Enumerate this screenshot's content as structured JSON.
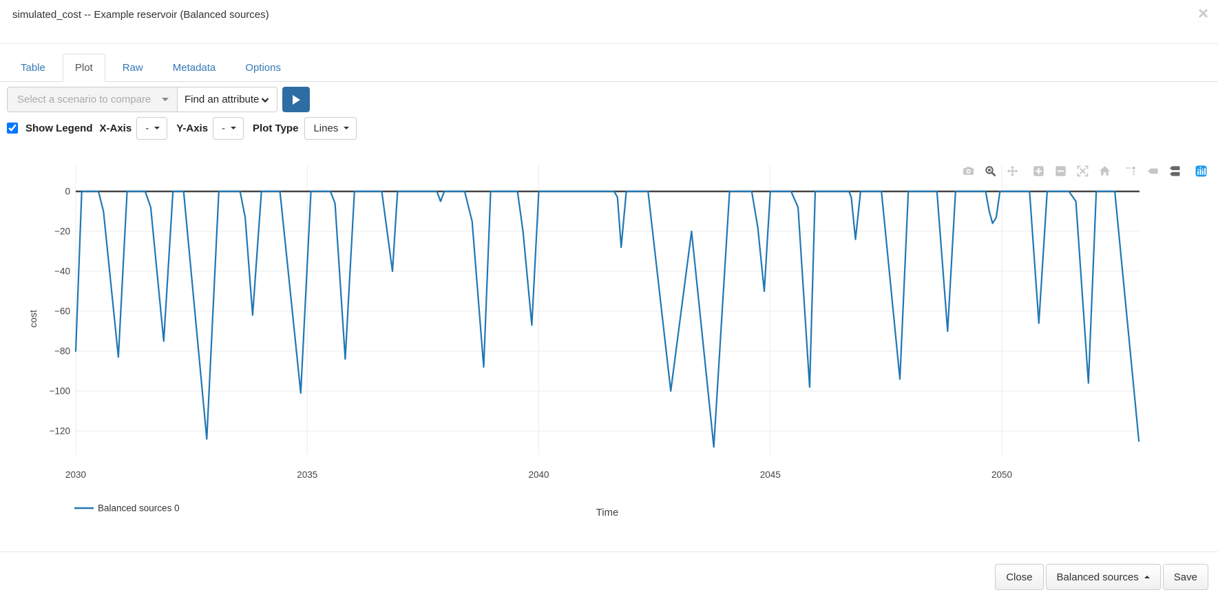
{
  "header": {
    "title": "simulated_cost -- Example reservoir (Balanced sources)",
    "close_icon": "×"
  },
  "tabs": [
    {
      "label": "Table",
      "active": false
    },
    {
      "label": "Plot",
      "active": true
    },
    {
      "label": "Raw",
      "active": false
    },
    {
      "label": "Metadata",
      "active": false
    },
    {
      "label": "Options",
      "active": false
    }
  ],
  "controls": {
    "scenario_select": {
      "placeholder": "Select a scenario to compare",
      "disabled": true,
      "icon": "caret-down-icon"
    },
    "attribute_dropdown": {
      "label": "Find an attribute",
      "icon": "chevron-down-icon"
    },
    "play_button": {
      "icon": "play-icon",
      "color": "#2e6da4"
    },
    "show_legend": {
      "label": "Show Legend",
      "checked": true
    },
    "x_axis": {
      "label": "X-Axis",
      "value": "-"
    },
    "y_axis": {
      "label": "Y-Axis",
      "value": "-"
    },
    "plot_type": {
      "label": "Plot Type",
      "value": "Lines"
    }
  },
  "modebar": {
    "icons": [
      {
        "name": "camera-icon",
        "state": "default"
      },
      {
        "name": "zoom-icon",
        "state": "active"
      },
      {
        "name": "pan-icon",
        "state": "default"
      },
      {
        "name": "zoom-in-icon",
        "state": "default",
        "group": true
      },
      {
        "name": "zoom-out-icon",
        "state": "default"
      },
      {
        "name": "autoscale-icon",
        "state": "default"
      },
      {
        "name": "reset-axes-icon",
        "state": "default"
      },
      {
        "name": "spikelines-icon",
        "state": "default",
        "group": true
      },
      {
        "name": "hover-closest-icon",
        "state": "default"
      },
      {
        "name": "hover-compare-icon",
        "state": "active"
      },
      {
        "name": "plotly-logo-icon",
        "state": "logo",
        "group": true
      }
    ]
  },
  "chart_data": {
    "type": "line",
    "title": "",
    "xlabel": "Time",
    "ylabel": "cost",
    "x_ticks": [
      2030,
      2035,
      2040,
      2045,
      2050
    ],
    "y_ticks": [
      0,
      -20,
      -40,
      -60,
      -80,
      -100,
      -120
    ],
    "xlim": [
      2030,
      2052.96
    ],
    "ylim": [
      -130,
      2
    ],
    "grid": true,
    "zero_line": true,
    "legend_position": "bottom-left",
    "line_color": "#1f77b4",
    "series": [
      {
        "name": "Balanced sources 0",
        "color": "#1f77b4",
        "points": [
          [
            2030.0,
            -80
          ],
          [
            2030.13,
            0
          ],
          [
            2030.49,
            0
          ],
          [
            2030.6,
            -10
          ],
          [
            2030.92,
            -83
          ],
          [
            2031.11,
            0
          ],
          [
            2031.5,
            0
          ],
          [
            2031.62,
            -8
          ],
          [
            2031.9,
            -75
          ],
          [
            2032.1,
            0
          ],
          [
            2032.33,
            0
          ],
          [
            2032.83,
            -124
          ],
          [
            2033.09,
            0
          ],
          [
            2033.55,
            0
          ],
          [
            2033.66,
            -13
          ],
          [
            2033.82,
            -62
          ],
          [
            2034.01,
            0
          ],
          [
            2034.41,
            0
          ],
          [
            2034.86,
            -101
          ],
          [
            2035.08,
            0
          ],
          [
            2035.5,
            0
          ],
          [
            2035.6,
            -6
          ],
          [
            2035.82,
            -84
          ],
          [
            2036.02,
            0
          ],
          [
            2036.61,
            0
          ],
          [
            2036.84,
            -40
          ],
          [
            2036.95,
            0
          ],
          [
            2037.8,
            0
          ],
          [
            2037.88,
            -5
          ],
          [
            2037.96,
            0
          ],
          [
            2038.4,
            0
          ],
          [
            2038.56,
            -15
          ],
          [
            2038.81,
            -88
          ],
          [
            2038.96,
            0
          ],
          [
            2039.54,
            0
          ],
          [
            2039.66,
            -20
          ],
          [
            2039.85,
            -67
          ],
          [
            2040.0,
            0
          ],
          [
            2041.63,
            0
          ],
          [
            2041.7,
            -3
          ],
          [
            2041.78,
            -28
          ],
          [
            2041.89,
            0
          ],
          [
            2042.36,
            0
          ],
          [
            2042.85,
            -100
          ],
          [
            2043.3,
            -20
          ],
          [
            2043.78,
            -128
          ],
          [
            2044.12,
            0
          ],
          [
            2044.6,
            0
          ],
          [
            2044.73,
            -18
          ],
          [
            2044.87,
            -50
          ],
          [
            2045.0,
            0
          ],
          [
            2045.45,
            0
          ],
          [
            2045.6,
            -8
          ],
          [
            2045.85,
            -98
          ],
          [
            2045.97,
            0
          ],
          [
            2046.7,
            0
          ],
          [
            2046.75,
            -3
          ],
          [
            2046.84,
            -24
          ],
          [
            2046.95,
            0
          ],
          [
            2047.4,
            0
          ],
          [
            2047.8,
            -94
          ],
          [
            2047.98,
            0
          ],
          [
            2048.6,
            0
          ],
          [
            2048.83,
            -70
          ],
          [
            2049.0,
            0
          ],
          [
            2049.65,
            0
          ],
          [
            2049.73,
            -10
          ],
          [
            2049.8,
            -16
          ],
          [
            2049.88,
            -13
          ],
          [
            2049.96,
            0
          ],
          [
            2050.6,
            0
          ],
          [
            2050.8,
            -66
          ],
          [
            2050.98,
            0
          ],
          [
            2051.45,
            0
          ],
          [
            2051.6,
            -5
          ],
          [
            2051.87,
            -96
          ],
          [
            2052.04,
            0
          ],
          [
            2052.44,
            0
          ],
          [
            2052.96,
            -125
          ]
        ]
      }
    ]
  },
  "footer": {
    "close_label": "Close",
    "scenario_label": "Balanced sources",
    "save_label": "Save",
    "scenario_icon": "caret-up-icon"
  },
  "colors": {
    "link_blue": "#337ab7",
    "line_blue": "#1f77b4",
    "play_button": "#2e6da4",
    "axis_text": "#444",
    "grid": "#ebebeb",
    "zero_line": "#444"
  }
}
